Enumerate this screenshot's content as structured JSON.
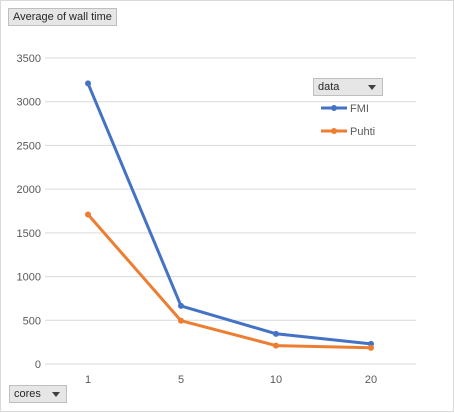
{
  "chart_data": {
    "type": "line",
    "title": "",
    "xlabel": "",
    "ylabel": "",
    "categories": [
      "1",
      "5",
      "10",
      "20"
    ],
    "series": [
      {
        "name": "FMI",
        "values": [
          3210,
          665,
          345,
          230
        ],
        "color": "#4472C4"
      },
      {
        "name": "Puhti",
        "values": [
          1710,
          495,
          210,
          185
        ],
        "color": "#ED7D31"
      }
    ],
    "ylim": [
      0,
      3500
    ],
    "yticks": [
      0,
      500,
      1000,
      1500,
      2000,
      2500,
      3000,
      3500
    ],
    "grid": true,
    "legend_placement": "top-right"
  },
  "pivot": {
    "values_field": "Average of wall time",
    "legend_field": "data",
    "axis_field": "cores"
  },
  "icons": {
    "dropdown": "chevron-down-icon"
  }
}
